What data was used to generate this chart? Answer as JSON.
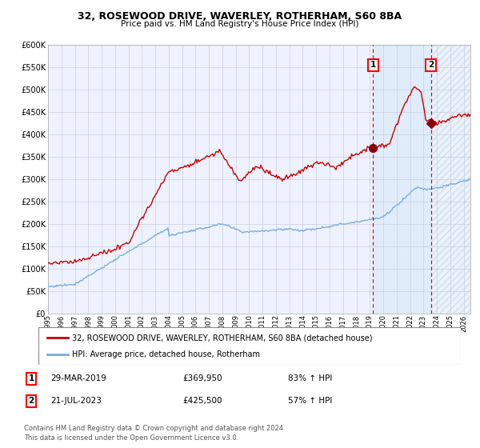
{
  "title": "32, ROSEWOOD DRIVE, WAVERLEY, ROTHERHAM, S60 8BA",
  "subtitle": "Price paid vs. HM Land Registry's House Price Index (HPI)",
  "legend_label_red": "32, ROSEWOOD DRIVE, WAVERLEY, ROTHERHAM, S60 8BA (detached house)",
  "legend_label_blue": "HPI: Average price, detached house, Rotherham",
  "annotation1_date": "29-MAR-2019",
  "annotation1_price": "£369,950",
  "annotation1_pct": "83% ↑ HPI",
  "annotation2_date": "21-JUL-2023",
  "annotation2_price": "£425,500",
  "annotation2_pct": "57% ↑ HPI",
  "footnote1": "Contains HM Land Registry data © Crown copyright and database right 2024.",
  "footnote2": "This data is licensed under the Open Government Licence v3.0.",
  "xmin": 1995.0,
  "xmax": 2026.5,
  "ymin": 0,
  "ymax": 600000,
  "yticks": [
    0,
    50000,
    100000,
    150000,
    200000,
    250000,
    300000,
    350000,
    400000,
    450000,
    500000,
    550000,
    600000
  ],
  "ytick_labels": [
    "£0",
    "£50K",
    "£100K",
    "£150K",
    "£200K",
    "£250K",
    "£300K",
    "£350K",
    "£400K",
    "£450K",
    "£500K",
    "£550K",
    "£600K"
  ],
  "sale1_x": 2019.247,
  "sale1_y": 369950,
  "sale2_x": 2023.547,
  "sale2_y": 425500,
  "shaded_region_start": 2019.247,
  "hatch_region_start": 2023.547,
  "plot_bg_color": "#eef2ff",
  "grid_color": "#c8cfe0",
  "red_line_color": "#cc0000",
  "blue_line_color": "#7aaddd",
  "marker_color": "#880000",
  "shade_color": "#d8e8f8",
  "hatch_fill_color": "#e0e0e0"
}
